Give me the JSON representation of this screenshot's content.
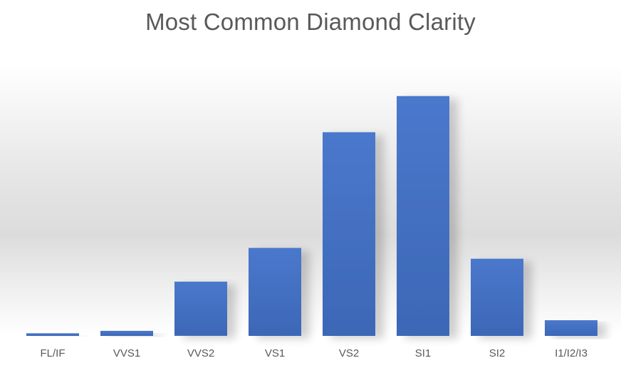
{
  "chart_data": {
    "type": "bar",
    "title": "Most Common Diamond Clarity",
    "xlabel": "",
    "ylabel": "",
    "categories": [
      "FL/IF",
      "VVS1",
      "VVS2",
      "VS1",
      "VS2",
      "SI1",
      "SI2",
      "I1/I2/I3"
    ],
    "values": [
      1.1,
      2.1,
      22.5,
      36.5,
      84.5,
      99.5,
      32,
      6.5
    ],
    "ylim": [
      0,
      100
    ],
    "grid": false,
    "legend": "none",
    "bar_color": "#4472c4"
  }
}
